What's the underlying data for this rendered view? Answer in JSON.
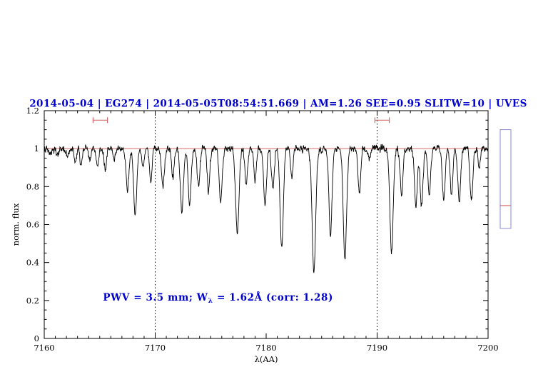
{
  "figure": {
    "background": "#ffffff"
  },
  "chart_data": {
    "type": "line",
    "title": "2014-05-04 | EG274 | 2014-05-05T08:54:51.669 | AM=1.26 SEE=0.95 SLITW=10 | UVES",
    "xlabel": "λ(AA)",
    "ylabel": "norm. flux",
    "xlim": [
      7160,
      7200
    ],
    "ylim": [
      0,
      1.2
    ],
    "x_ticks": [
      7160,
      7170,
      7180,
      7190,
      7200
    ],
    "x_minor_step": 1,
    "y_ticks": [
      0,
      0.2,
      0.4,
      0.6,
      0.8,
      1,
      1.2
    ],
    "y_tick_labels": [
      "0",
      "0.2",
      "0.4",
      "0.6",
      "0.8",
      "1",
      "1.2"
    ],
    "y_minor_step": 0.05,
    "grid": false,
    "legend": "none",
    "dotted_lines_x": [
      7170,
      7190
    ],
    "continuum_level": 1.0,
    "sample_step": 0.03,
    "noise_sigma": 0.009,
    "absorption_lines_format": [
      "center_AA",
      "depth",
      "sigma_AA"
    ],
    "absorption_lines": [
      [
        7160.5,
        0.03,
        0.1
      ],
      [
        7161.2,
        0.04,
        0.1
      ],
      [
        7162.1,
        0.05,
        0.1
      ],
      [
        7162.8,
        0.07,
        0.1
      ],
      [
        7163.3,
        0.09,
        0.1
      ],
      [
        7164.1,
        0.07,
        0.1
      ],
      [
        7164.8,
        0.1,
        0.11
      ],
      [
        7165.5,
        0.11,
        0.11
      ],
      [
        7166.3,
        0.06,
        0.1
      ],
      [
        7167.5,
        0.22,
        0.13
      ],
      [
        7168.2,
        0.35,
        0.14
      ],
      [
        7168.9,
        0.1,
        0.1
      ],
      [
        7169.6,
        0.17,
        0.12
      ],
      [
        7170.7,
        0.2,
        0.13
      ],
      [
        7171.6,
        0.15,
        0.11
      ],
      [
        7172.4,
        0.33,
        0.14
      ],
      [
        7173.1,
        0.3,
        0.13
      ],
      [
        7173.9,
        0.2,
        0.12
      ],
      [
        7174.8,
        0.22,
        0.12
      ],
      [
        7175.9,
        0.28,
        0.13
      ],
      [
        7177.4,
        0.45,
        0.15
      ],
      [
        7178.2,
        0.2,
        0.12
      ],
      [
        7179.0,
        0.17,
        0.11
      ],
      [
        7179.9,
        0.29,
        0.13
      ],
      [
        7180.6,
        0.22,
        0.12
      ],
      [
        7181.4,
        0.52,
        0.15
      ],
      [
        7182.3,
        0.15,
        0.11
      ],
      [
        7184.3,
        0.65,
        0.16
      ],
      [
        7185.8,
        0.45,
        0.14
      ],
      [
        7187.1,
        0.58,
        0.15
      ],
      [
        7188.4,
        0.23,
        0.12
      ],
      [
        7189.3,
        0.05,
        0.1
      ],
      [
        7191.3,
        0.55,
        0.15
      ],
      [
        7192.2,
        0.25,
        0.12
      ],
      [
        7193.5,
        0.3,
        0.13
      ],
      [
        7194.0,
        0.3,
        0.13
      ],
      [
        7194.7,
        0.25,
        0.12
      ],
      [
        7196.0,
        0.26,
        0.13
      ],
      [
        7196.7,
        0.24,
        0.12
      ],
      [
        7197.4,
        0.28,
        0.13
      ],
      [
        7198.5,
        0.27,
        0.13
      ],
      [
        7199.2,
        0.1,
        0.1
      ]
    ],
    "markers": [
      {
        "x1": 7164.4,
        "x2": 7165.7,
        "y": 1.15
      },
      {
        "x1": 7189.8,
        "x2": 7191.1,
        "y": 1.15
      }
    ],
    "annotation": {
      "prefix": "PWV = 3.5 mm; W",
      "sub": "λ",
      "suffix": " = 1.62Å (corr: 1.28)",
      "x": 7165.3,
      "y": 0.2
    },
    "side_bar": {
      "top": 1.1,
      "bottom": 0.58,
      "marker": 0.7
    },
    "colors": {
      "title": "#0000cd",
      "annotation": "#0000cd",
      "spectrum": "#000000",
      "continuum": "#d96a6a",
      "marker": "#d96a6a",
      "side_bar_border": "#8a8ad6",
      "side_bar_marker": "#d96a6a",
      "axis": "#000000"
    }
  }
}
